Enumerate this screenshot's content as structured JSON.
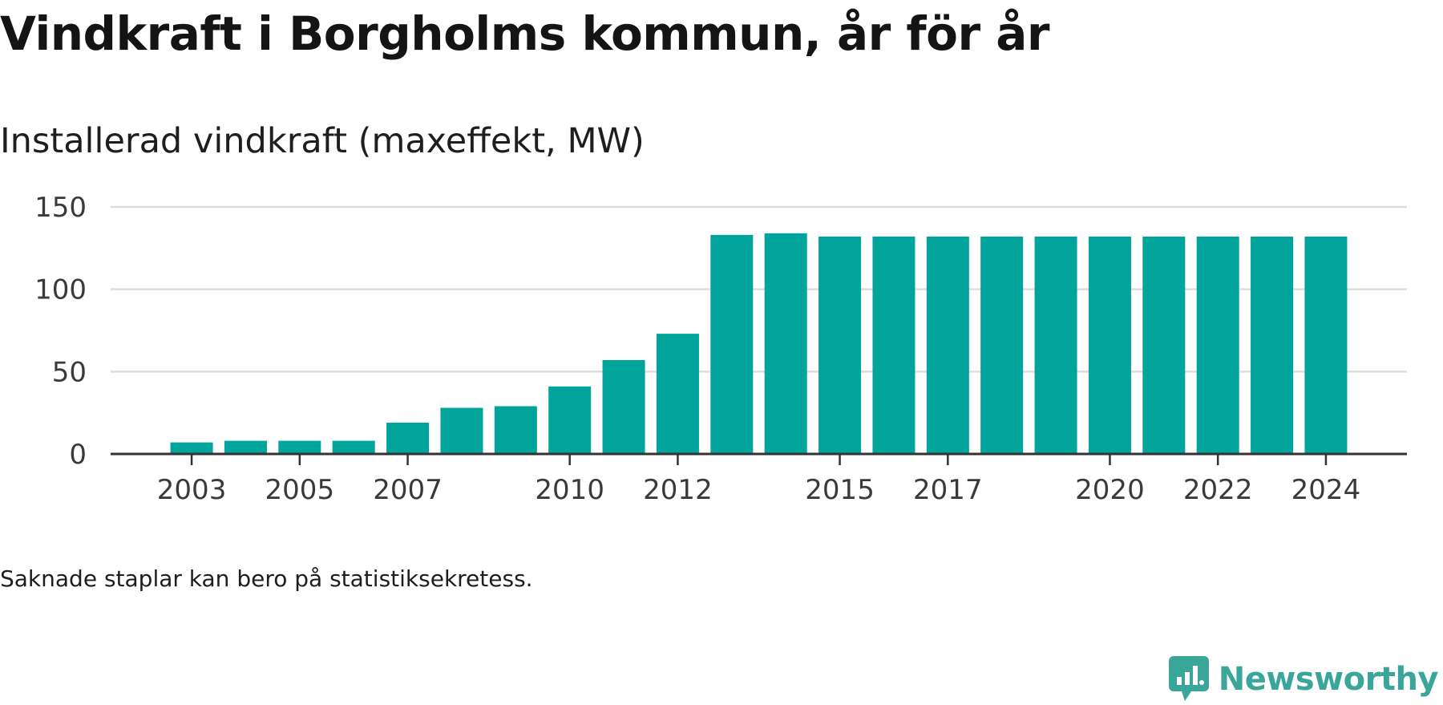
{
  "title": "Vindkraft i Borgholms kommun, år för år",
  "subtitle": "Installerad vindkraft (maxeffekt, MW)",
  "footnote": "Saknade staplar kan bero på statistiksekretess.",
  "brand": {
    "name": "Newsworthy",
    "icon": "newsworthy-logo-icon",
    "color": "#3aa69a"
  },
  "colors": {
    "bar": "#00a49a",
    "grid": "#dddddd",
    "axis": "#333333"
  },
  "chart_data": {
    "type": "bar",
    "categories": [
      "2003",
      "2004",
      "2005",
      "2006",
      "2007",
      "2008",
      "2009",
      "2010",
      "2011",
      "2012",
      "2013",
      "2014",
      "2015",
      "2016",
      "2017",
      "2018",
      "2019",
      "2020",
      "2021",
      "2022",
      "2023",
      "2024"
    ],
    "values": [
      7,
      8,
      8,
      8,
      19,
      28,
      29,
      41,
      57,
      73,
      133,
      134,
      132,
      132,
      132,
      132,
      132,
      132,
      132,
      132,
      132,
      132
    ],
    "x_tick_labels": [
      "2003",
      "2005",
      "2007",
      "2010",
      "2012",
      "2015",
      "2017",
      "2020",
      "2022",
      "2024"
    ],
    "y_ticks": [
      0,
      50,
      100,
      150
    ],
    "ylim": [
      0,
      150
    ],
    "xlim": [
      2001.5,
      2025.5
    ],
    "xlabel": "",
    "ylabel": "",
    "grid": true,
    "legend": "none"
  }
}
